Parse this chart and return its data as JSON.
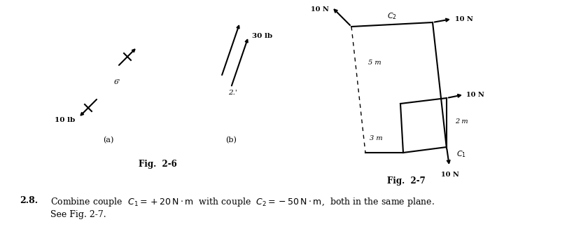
{
  "bg_color": "#ffffff",
  "fig_width": 8.1,
  "fig_height": 3.57,
  "fig26_label": "Fig.  2-6",
  "fig27_label": "Fig.  2-7",
  "sub_a_label": "(a)",
  "sub_b_label": "(b)",
  "text_color": "#1a1a1a",
  "problem_number": "2.8.",
  "problem_text": "Combine couple  $C_1 = +20\\,\\mathrm{N \\cdot m}$  with couple  $C_2 = -50\\,\\mathrm{N \\cdot m}$,  both in the same plane.",
  "problem_text2": "See Fig. 2-7."
}
